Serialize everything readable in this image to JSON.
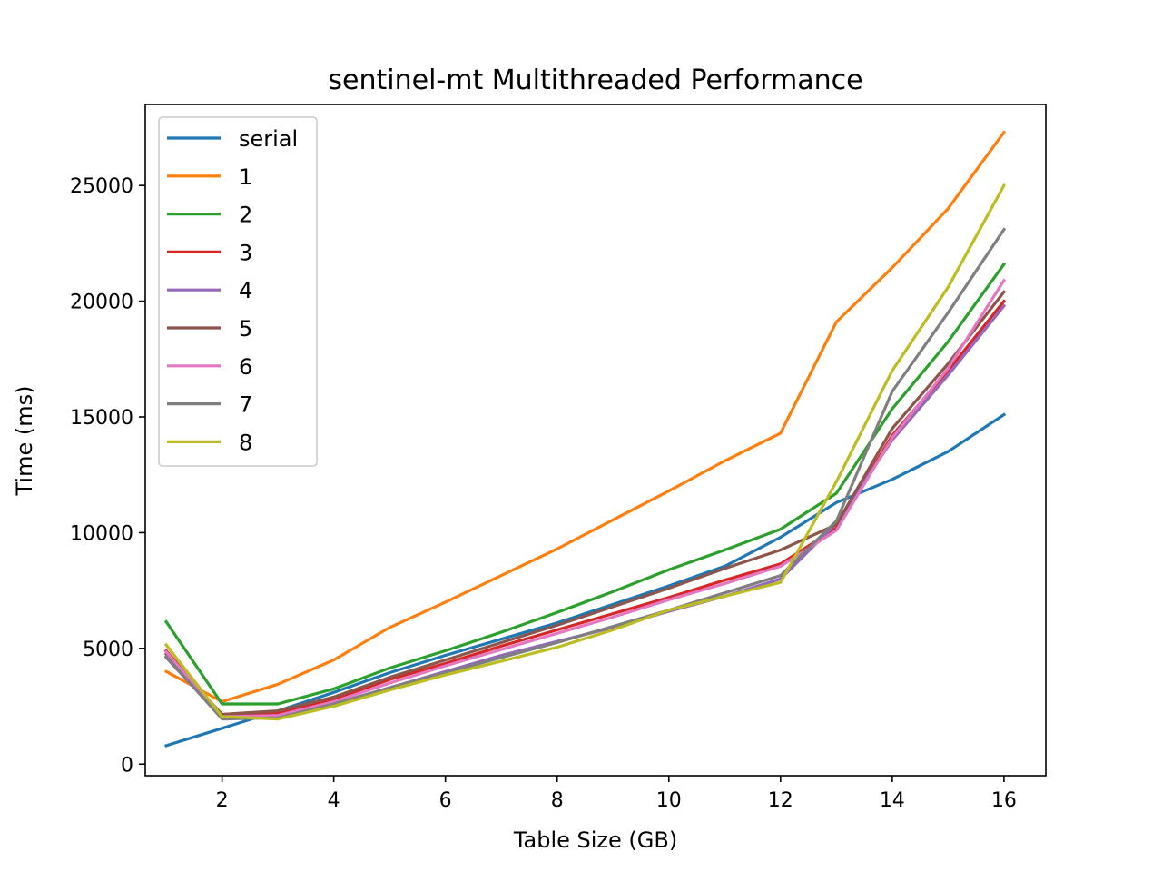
{
  "chart_data": {
    "type": "line",
    "title": "sentinel-mt Multithreaded Performance",
    "xlabel": "Table Size (GB)",
    "ylabel": "Time (ms)",
    "xlim": [
      0.625,
      16.75
    ],
    "ylim": [
      -500,
      28500
    ],
    "xticks": [
      2,
      4,
      6,
      8,
      10,
      12,
      14,
      16
    ],
    "yticks": [
      0,
      5000,
      10000,
      15000,
      20000,
      25000
    ],
    "grid": false,
    "legend_position": "upper-left",
    "x": [
      1,
      2,
      3,
      4,
      5,
      6,
      7,
      8,
      9,
      10,
      11,
      12,
      13,
      14,
      15,
      16
    ],
    "series": [
      {
        "name": "serial",
        "color": "#1f77b4",
        "values": [
          800,
          1550,
          2300,
          3100,
          3950,
          4700,
          5400,
          6100,
          6900,
          7700,
          8550,
          9800,
          11300,
          12300,
          13500,
          15100
        ]
      },
      {
        "name": "1",
        "color": "#ff7f0e",
        "values": [
          4000,
          2700,
          3450,
          4500,
          5900,
          7000,
          8150,
          9300,
          10550,
          11800,
          13100,
          14300,
          19100,
          21450,
          24000,
          27300
        ]
      },
      {
        "name": "2",
        "color": "#2ca02c",
        "values": [
          6150,
          2600,
          2600,
          3250,
          4150,
          4900,
          5700,
          6550,
          7450,
          8400,
          9250,
          10150,
          11700,
          15350,
          18250,
          21600
        ]
      },
      {
        "name": "3",
        "color": "#d62728",
        "values": [
          4900,
          2100,
          2200,
          2800,
          3650,
          4350,
          5100,
          5800,
          6500,
          7200,
          7950,
          8650,
          10200,
          14200,
          17000,
          20000
        ]
      },
      {
        "name": "4",
        "color": "#9467bd",
        "values": [
          4600,
          2000,
          2000,
          2600,
          3300,
          4000,
          4700,
          5300,
          5900,
          6600,
          7250,
          8000,
          10400,
          14000,
          16800,
          19800
        ]
      },
      {
        "name": "5",
        "color": "#8c564b",
        "values": [
          4750,
          2150,
          2300,
          2900,
          3750,
          4500,
          5250,
          6000,
          6800,
          7600,
          8450,
          9250,
          10350,
          14500,
          17300,
          20400
        ]
      },
      {
        "name": "6",
        "color": "#e377c2",
        "values": [
          4850,
          2050,
          2100,
          2700,
          3500,
          4250,
          4950,
          5650,
          6350,
          7100,
          7800,
          8550,
          10100,
          14100,
          17100,
          20900
        ]
      },
      {
        "name": "7",
        "color": "#7f7f7f",
        "values": [
          4650,
          1950,
          2000,
          2600,
          3300,
          3950,
          4600,
          5250,
          5950,
          6650,
          7400,
          8150,
          10500,
          16100,
          19500,
          23100
        ]
      },
      {
        "name": "8",
        "color": "#bcbd22",
        "values": [
          5150,
          2050,
          1950,
          2500,
          3200,
          3850,
          4450,
          5050,
          5800,
          6650,
          7250,
          7850,
          12200,
          17000,
          20600,
          25000
        ]
      }
    ]
  }
}
